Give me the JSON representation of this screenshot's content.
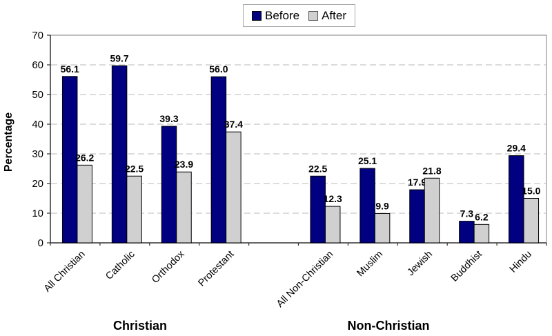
{
  "chart_data": {
    "type": "bar",
    "title": "",
    "ylabel": "Percentage",
    "xlabel": "",
    "ylim": [
      0,
      70
    ],
    "ytick_interval": 10,
    "grid": "horizontal dashed gridlines every 10",
    "legend_position": "top-center",
    "value_labels": "one decimal above each bar",
    "categories": [
      "All Christian",
      "Catholic",
      "Orthodox",
      "Protestant",
      "All Non-Christian",
      "Muslim",
      "Jewish",
      "Buddhist",
      "Hindu"
    ],
    "groups": [
      {
        "label": "Christian",
        "category_indexes": [
          0,
          1,
          2,
          3
        ]
      },
      {
        "label": "Non-Christian",
        "category_indexes": [
          4,
          5,
          6,
          7,
          8
        ]
      }
    ],
    "series": [
      {
        "name": "Before",
        "color": "#000080",
        "values": [
          56.1,
          59.7,
          39.3,
          56.0,
          22.5,
          25.1,
          17.9,
          7.3,
          29.4
        ]
      },
      {
        "name": "After",
        "color": "#d0d0d0",
        "values": [
          26.2,
          22.5,
          23.9,
          37.4,
          12.3,
          9.9,
          21.8,
          6.2,
          15.0
        ]
      }
    ],
    "colors": {
      "bar_border": "#000000",
      "gridline": "#c8c8c8",
      "plot_border": "#7f7f7f",
      "axis_line": "#303030",
      "text": "#000000",
      "background": "#ffffff"
    }
  }
}
